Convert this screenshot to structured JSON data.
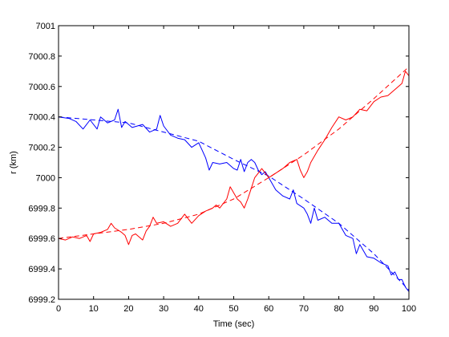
{
  "chart_data": {
    "type": "line",
    "title": "",
    "xlabel": "Time (sec)",
    "ylabel": "r (km)",
    "xlim": [
      0,
      100
    ],
    "ylim": [
      6999.2,
      7001
    ],
    "x_ticks": [
      0,
      10,
      20,
      30,
      40,
      50,
      60,
      70,
      80,
      90,
      100
    ],
    "x_tick_labels": [
      "0",
      "10",
      "20",
      "30",
      "40",
      "50",
      "60",
      "70",
      "80",
      "90",
      "100"
    ],
    "y_ticks": [
      6999.2,
      6999.4,
      6999.6,
      6999.8,
      7000,
      7000.2,
      7000.4,
      7000.6,
      7000.8,
      7001
    ],
    "y_tick_labels": [
      "6999.2",
      "6999.4",
      "6999.6",
      "6999.8",
      "7000",
      "7000.2",
      "7000.4",
      "7000.6",
      "7000.8",
      "7001"
    ],
    "grid": false,
    "colors": {
      "blue": "#0000ff",
      "red": "#ff0000"
    },
    "series": [
      {
        "style": "solid",
        "color": "#0000ff",
        "x": [
          0,
          3,
          5,
          7,
          9,
          11,
          12,
          14,
          16,
          17,
          18,
          19,
          21,
          24,
          26,
          28,
          29,
          30,
          32,
          34,
          36,
          38,
          40,
          41,
          42,
          43,
          44,
          46,
          48,
          50,
          51,
          52,
          53,
          54,
          55,
          56,
          57,
          58,
          59,
          60,
          62,
          64,
          66,
          67,
          68,
          70,
          71,
          72,
          73,
          74,
          76,
          78,
          80,
          82,
          84,
          85,
          86,
          87,
          88,
          90,
          92,
          94,
          95,
          96,
          97,
          98,
          99,
          100
        ],
        "y": [
          7000.4,
          7000.39,
          7000.37,
          7000.32,
          7000.38,
          7000.32,
          7000.4,
          7000.36,
          7000.38,
          7000.45,
          7000.33,
          7000.37,
          7000.33,
          7000.35,
          7000.3,
          7000.32,
          7000.41,
          7000.34,
          7000.28,
          7000.26,
          7000.25,
          7000.2,
          7000.23,
          7000.18,
          7000.13,
          7000.05,
          7000.1,
          7000.09,
          7000.1,
          7000.06,
          7000.05,
          7000.12,
          7000.04,
          7000.1,
          7000.12,
          7000.1,
          7000.05,
          7000.02,
          7000.04,
          7000.0,
          6999.92,
          6999.88,
          6999.86,
          6999.92,
          6999.83,
          6999.8,
          6999.76,
          6999.7,
          6999.8,
          6999.72,
          6999.74,
          6999.7,
          6999.7,
          6999.62,
          6999.6,
          6999.5,
          6999.56,
          6999.52,
          6999.48,
          6999.47,
          6999.44,
          6999.42,
          6999.36,
          6999.38,
          6999.33,
          6999.33,
          6999.28,
          6999.25
        ]
      },
      {
        "style": "dashed",
        "color": "#0000ff",
        "x": [
          0,
          20,
          40,
          50,
          60,
          70,
          80,
          90,
          100
        ],
        "y": [
          7000.4,
          7000.36,
          7000.24,
          7000.12,
          7000.01,
          6999.86,
          6999.7,
          6999.5,
          6999.26
        ]
      },
      {
        "style": "solid",
        "color": "#ff0000",
        "x": [
          0,
          2,
          4,
          6,
          8,
          9,
          10,
          12,
          14,
          15,
          16,
          18,
          19,
          20,
          21,
          22,
          24,
          25,
          26,
          27,
          28,
          30,
          32,
          34,
          36,
          38,
          40,
          42,
          44,
          45,
          46,
          48,
          49,
          50,
          51,
          52,
          53,
          54,
          55,
          56,
          58,
          60,
          62,
          64,
          66,
          68,
          69,
          70,
          71,
          72,
          74,
          76,
          78,
          80,
          82,
          84,
          86,
          88,
          90,
          92,
          94,
          96,
          98,
          99,
          100
        ],
        "y": [
          6999.6,
          6999.59,
          6999.61,
          6999.6,
          6999.62,
          6999.58,
          6999.63,
          6999.64,
          6999.66,
          6999.7,
          6999.67,
          6999.64,
          6999.62,
          6999.56,
          6999.62,
          6999.63,
          6999.59,
          6999.65,
          6999.68,
          6999.74,
          6999.7,
          6999.71,
          6999.68,
          6999.7,
          6999.76,
          6999.7,
          6999.75,
          6999.78,
          6999.8,
          6999.82,
          6999.8,
          6999.86,
          6999.94,
          6999.9,
          6999.86,
          6999.84,
          6999.8,
          6999.86,
          6999.93,
          7000.0,
          7000.06,
          7000.0,
          7000.03,
          7000.06,
          7000.1,
          7000.12,
          7000.05,
          7000.0,
          7000.04,
          7000.1,
          7000.18,
          7000.25,
          7000.33,
          7000.4,
          7000.38,
          7000.4,
          7000.45,
          7000.44,
          7000.5,
          7000.53,
          7000.54,
          7000.58,
          7000.62,
          7000.7,
          7000.67
        ]
      },
      {
        "style": "dashed",
        "color": "#ff0000",
        "x": [
          0,
          10,
          20,
          30,
          40,
          50,
          60,
          70,
          80,
          90,
          100
        ],
        "y": [
          6999.6,
          6999.63,
          6999.66,
          6999.7,
          6999.76,
          6999.86,
          7000.0,
          7000.15,
          7000.32,
          7000.52,
          7000.73
        ]
      }
    ]
  }
}
